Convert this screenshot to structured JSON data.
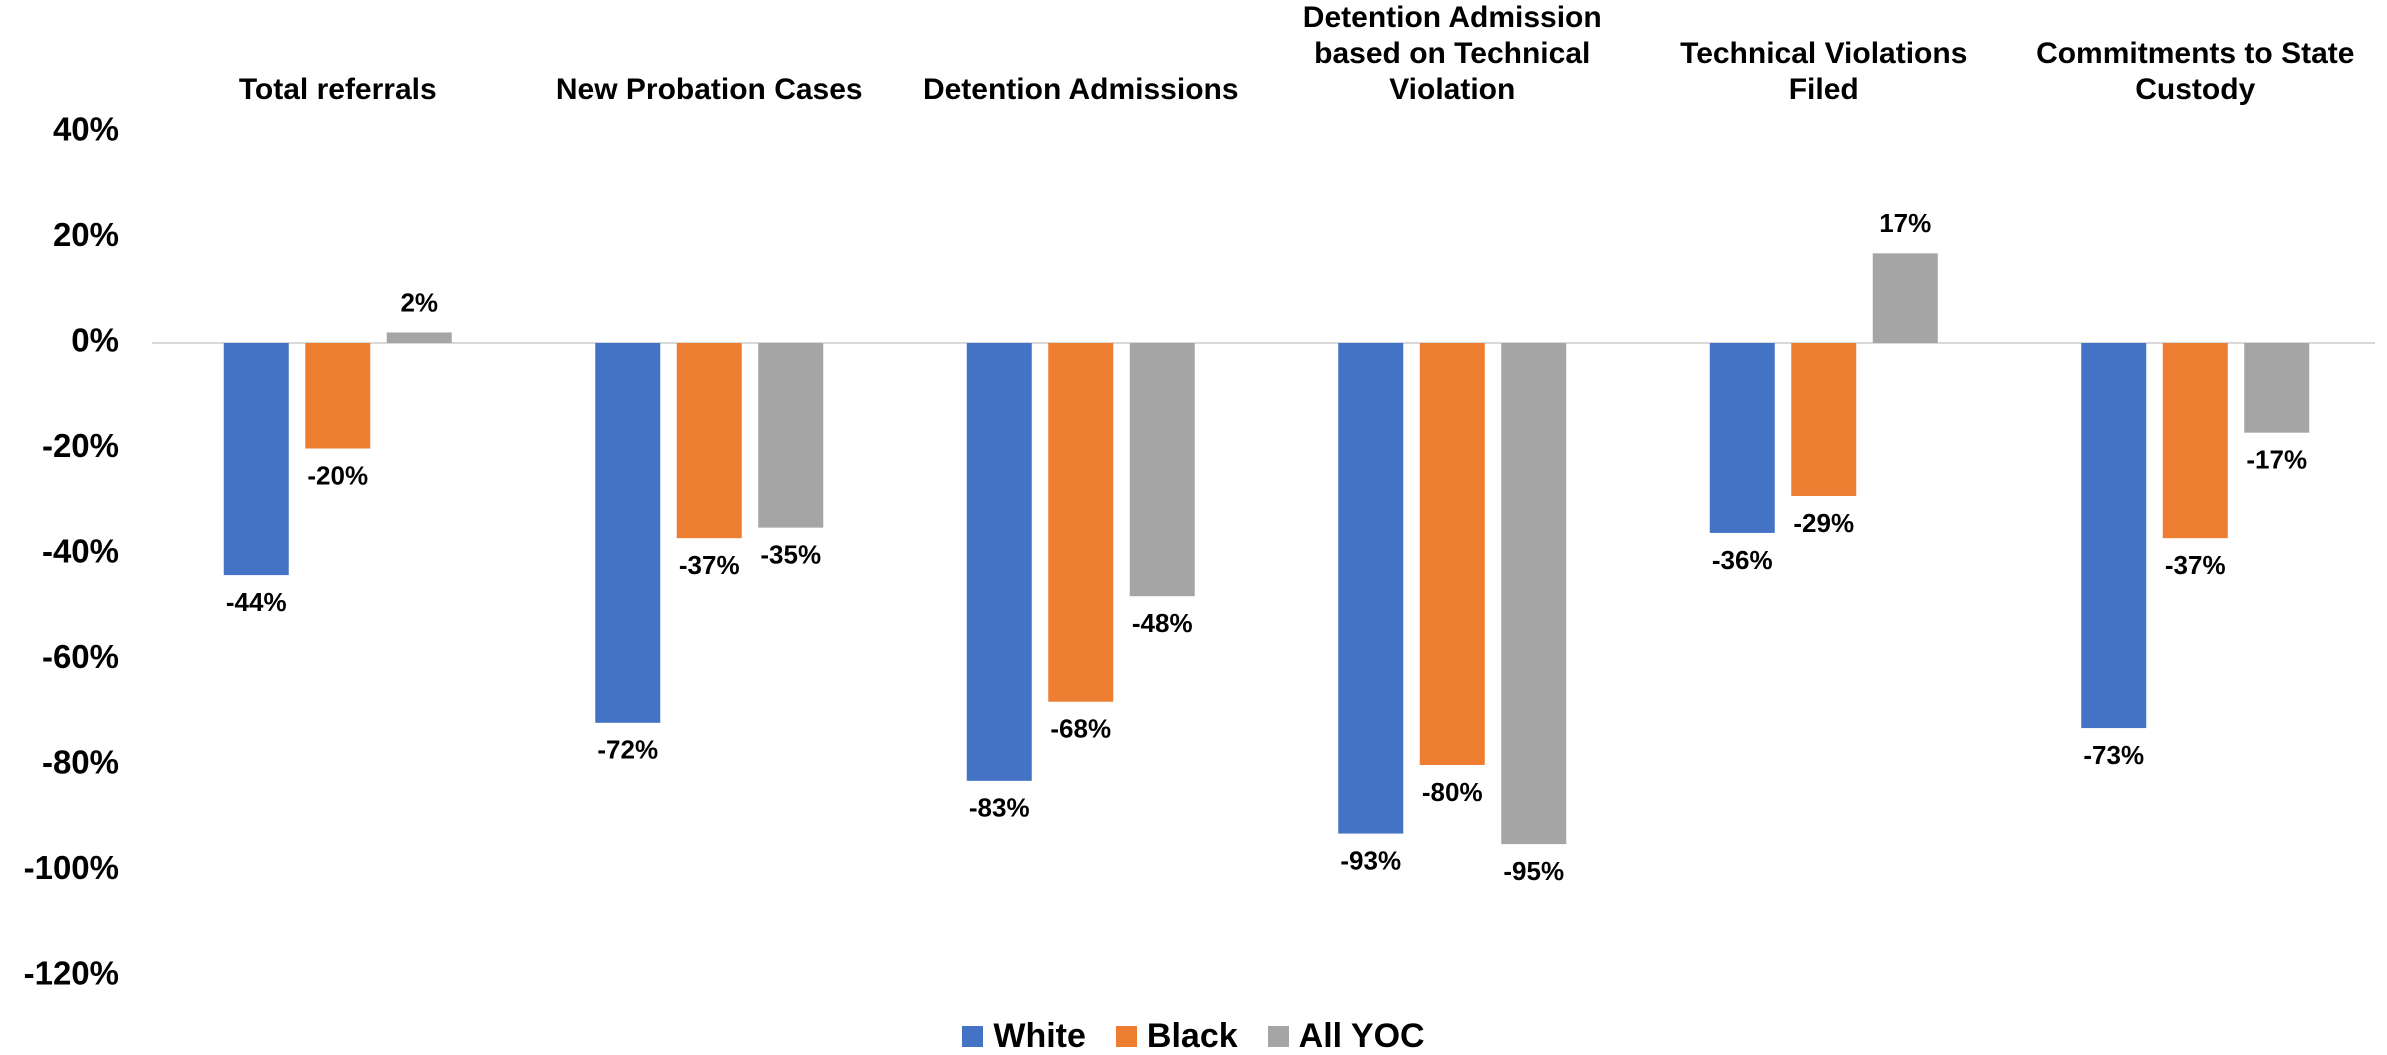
{
  "chart_data": {
    "type": "bar",
    "categories": [
      "Total referrals",
      "New Probation Cases",
      "Detention Admissions",
      "Detention Admission based on Technical Violation",
      "Technical Violations Filed",
      "Commitments to State Custody"
    ],
    "series": [
      {
        "name": "White",
        "color": "#4472c4",
        "values": [
          -44,
          -72,
          -83,
          -93,
          -36,
          -73
        ],
        "value_labels": [
          "-44%",
          "-72%",
          "-83%",
          "-93%",
          "-36%",
          "-73%"
        ]
      },
      {
        "name": "Black",
        "color": "#ed7d31",
        "values": [
          -20,
          -37,
          -68,
          -80,
          -29,
          -37
        ],
        "value_labels": [
          "-20%",
          "-37%",
          "-68%",
          "-80%",
          "-29%",
          "-37%"
        ]
      },
      {
        "name": "All YOC",
        "color": "#a5a5a5",
        "values": [
          2,
          -35,
          -48,
          -95,
          17,
          -17
        ],
        "value_labels": [
          "2%",
          "-35%",
          "-48%",
          "-95%",
          "17%",
          "-17%"
        ]
      }
    ],
    "ylim": [
      -120,
      40
    ],
    "yticks": [
      {
        "value": 40,
        "label": "40%"
      },
      {
        "value": 20,
        "label": "20%"
      },
      {
        "value": 0,
        "label": "0%"
      },
      {
        "value": -20,
        "label": "-20%"
      },
      {
        "value": -40,
        "label": "-40%"
      },
      {
        "value": -60,
        "label": "-60%"
      },
      {
        "value": -80,
        "label": "-80%"
      },
      {
        "value": -100,
        "label": "-100%"
      },
      {
        "value": -120,
        "label": "-120%"
      }
    ],
    "grid": false,
    "legend": "bottom"
  }
}
